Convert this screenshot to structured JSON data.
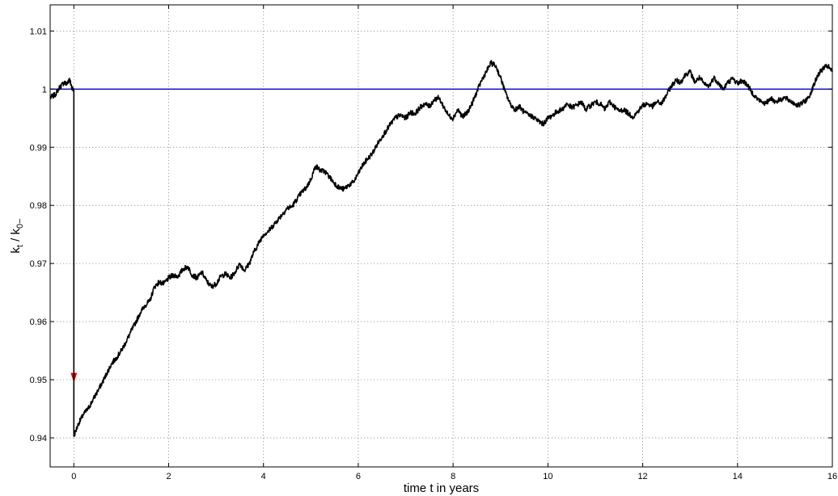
{
  "chart_data": {
    "type": "line",
    "title": "",
    "xlabel": "time t in years",
    "ylabel_main_1": "k",
    "ylabel_sub_1": "t",
    "ylabel_sep": " / k",
    "ylabel_sub_2": "0−",
    "xlim": [
      -0.5,
      16
    ],
    "ylim": [
      0.935,
      1.0145
    ],
    "xticks": [
      0,
      2,
      4,
      6,
      8,
      10,
      12,
      14,
      16
    ],
    "yticks": [
      0.94,
      0.95,
      0.96,
      0.97,
      0.98,
      0.99,
      1,
      1.01
    ],
    "grid": true,
    "colors": {
      "path": "#000000",
      "reference": "#0000cc",
      "arrow": "#ee0000"
    },
    "reference_line": {
      "y": 1.0
    },
    "arrow": {
      "x": 0.0,
      "y_from": 0.9997,
      "y_to": 0.9495
    },
    "series": [
      {
        "points": [
          [
            -0.5,
            0.9985
          ],
          [
            -0.4,
            0.999
          ],
          [
            -0.3,
            1.0003
          ],
          [
            -0.2,
            1.0012
          ],
          [
            -0.15,
            1.0008
          ],
          [
            -0.1,
            1.0018
          ],
          [
            -0.05,
            1.0005
          ],
          [
            0.0,
            0.9997
          ],
          [
            0.0,
            0.9403
          ],
          [
            0.1,
            0.9425
          ],
          [
            0.2,
            0.944
          ],
          [
            0.3,
            0.945
          ],
          [
            0.4,
            0.9465
          ],
          [
            0.5,
            0.948
          ],
          [
            0.6,
            0.9495
          ],
          [
            0.7,
            0.9512
          ],
          [
            0.8,
            0.9528
          ],
          [
            0.9,
            0.9538
          ],
          [
            1.0,
            0.955
          ],
          [
            1.1,
            0.9565
          ],
          [
            1.2,
            0.9582
          ],
          [
            1.3,
            0.9598
          ],
          [
            1.4,
            0.9615
          ],
          [
            1.5,
            0.9628
          ],
          [
            1.6,
            0.9635
          ],
          [
            1.7,
            0.966
          ],
          [
            1.8,
            0.9668
          ],
          [
            1.9,
            0.9665
          ],
          [
            2.0,
            0.9675
          ],
          [
            2.1,
            0.968
          ],
          [
            2.2,
            0.9678
          ],
          [
            2.3,
            0.969
          ],
          [
            2.4,
            0.9695
          ],
          [
            2.5,
            0.968
          ],
          [
            2.6,
            0.9675
          ],
          [
            2.7,
            0.9685
          ],
          [
            2.8,
            0.967
          ],
          [
            2.9,
            0.966
          ],
          [
            3.0,
            0.9665
          ],
          [
            3.1,
            0.9678
          ],
          [
            3.2,
            0.9682
          ],
          [
            3.3,
            0.9675
          ],
          [
            3.4,
            0.9685
          ],
          [
            3.5,
            0.97
          ],
          [
            3.6,
            0.9688
          ],
          [
            3.7,
            0.97
          ],
          [
            3.8,
            0.972
          ],
          [
            3.9,
            0.9735
          ],
          [
            4.0,
            0.975
          ],
          [
            4.1,
            0.9755
          ],
          [
            4.2,
            0.9765
          ],
          [
            4.3,
            0.9775
          ],
          [
            4.4,
            0.9785
          ],
          [
            4.5,
            0.9795
          ],
          [
            4.6,
            0.9798
          ],
          [
            4.7,
            0.981
          ],
          [
            4.8,
            0.9822
          ],
          [
            4.9,
            0.983
          ],
          [
            5.0,
            0.9845
          ],
          [
            5.1,
            0.9868
          ],
          [
            5.2,
            0.986
          ],
          [
            5.3,
            0.9858
          ],
          [
            5.4,
            0.9848
          ],
          [
            5.5,
            0.9838
          ],
          [
            5.6,
            0.983
          ],
          [
            5.7,
            0.9828
          ],
          [
            5.8,
            0.9835
          ],
          [
            5.9,
            0.984
          ],
          [
            6.0,
            0.9855
          ],
          [
            6.1,
            0.987
          ],
          [
            6.2,
            0.988
          ],
          [
            6.3,
            0.989
          ],
          [
            6.4,
            0.9905
          ],
          [
            6.5,
            0.9918
          ],
          [
            6.6,
            0.993
          ],
          [
            6.7,
            0.9942
          ],
          [
            6.8,
            0.9952
          ],
          [
            6.9,
            0.9955
          ],
          [
            7.0,
            0.995
          ],
          [
            7.1,
            0.996
          ],
          [
            7.2,
            0.9958
          ],
          [
            7.3,
            0.9968
          ],
          [
            7.4,
            0.9975
          ],
          [
            7.5,
            0.997
          ],
          [
            7.6,
            0.9982
          ],
          [
            7.7,
            0.9985
          ],
          [
            7.8,
            0.997
          ],
          [
            7.9,
            0.9955
          ],
          [
            8.0,
            0.995
          ],
          [
            8.1,
            0.9965
          ],
          [
            8.2,
            0.9952
          ],
          [
            8.3,
            0.996
          ],
          [
            8.4,
            0.9975
          ],
          [
            8.5,
            0.9995
          ],
          [
            8.6,
            1.0015
          ],
          [
            8.7,
            1.003
          ],
          [
            8.8,
            1.0045
          ],
          [
            8.9,
            1.004
          ],
          [
            9.0,
            1.002
          ],
          [
            9.1,
            0.9995
          ],
          [
            9.2,
            0.9975
          ],
          [
            9.3,
            0.9965
          ],
          [
            9.4,
            0.997
          ],
          [
            9.5,
            0.996
          ],
          [
            9.6,
            0.9955
          ],
          [
            9.7,
            0.9952
          ],
          [
            9.8,
            0.9945
          ],
          [
            9.9,
            0.994
          ],
          [
            10.0,
            0.995
          ],
          [
            10.1,
            0.9955
          ],
          [
            10.2,
            0.9962
          ],
          [
            10.3,
            0.9965
          ],
          [
            10.4,
            0.9975
          ],
          [
            10.5,
            0.9968
          ],
          [
            10.6,
            0.9972
          ],
          [
            10.7,
            0.9978
          ],
          [
            10.8,
            0.9965
          ],
          [
            10.9,
            0.9972
          ],
          [
            11.0,
            0.9978
          ],
          [
            11.1,
            0.9975
          ],
          [
            11.2,
            0.9965
          ],
          [
            11.3,
            0.9978
          ],
          [
            11.4,
            0.997
          ],
          [
            11.5,
            0.9962
          ],
          [
            11.6,
            0.9965
          ],
          [
            11.7,
            0.9958
          ],
          [
            11.8,
            0.9952
          ],
          [
            11.9,
            0.9962
          ],
          [
            12.0,
            0.9972
          ],
          [
            12.1,
            0.9975
          ],
          [
            12.2,
            0.997
          ],
          [
            12.3,
            0.9978
          ],
          [
            12.4,
            0.9975
          ],
          [
            12.5,
            0.999
          ],
          [
            12.6,
            1.0005
          ],
          [
            12.7,
            1.0015
          ],
          [
            12.8,
            1.0012
          ],
          [
            12.9,
            1.0025
          ],
          [
            13.0,
            1.003
          ],
          [
            13.1,
            1.0012
          ],
          [
            13.2,
            1.002
          ],
          [
            13.3,
            1.0008
          ],
          [
            13.4,
            1.0005
          ],
          [
            13.5,
            1.002
          ],
          [
            13.6,
            1.001
          ],
          [
            13.7,
            1.0
          ],
          [
            13.8,
            1.0012
          ],
          [
            13.9,
            1.0018
          ],
          [
            14.0,
            1.001
          ],
          [
            14.1,
            1.0015
          ],
          [
            14.2,
            1.0008
          ],
          [
            14.3,
            0.9995
          ],
          [
            14.4,
            0.9985
          ],
          [
            14.5,
            0.9978
          ],
          [
            14.6,
            0.9975
          ],
          [
            14.7,
            0.9985
          ],
          [
            14.8,
            0.9978
          ],
          [
            14.9,
            0.9982
          ],
          [
            15.0,
            0.9985
          ],
          [
            15.1,
            0.998
          ],
          [
            15.2,
            0.9975
          ],
          [
            15.3,
            0.9972
          ],
          [
            15.4,
            0.9978
          ],
          [
            15.5,
            0.9985
          ],
          [
            15.6,
            1.0005
          ],
          [
            15.7,
            1.0025
          ],
          [
            15.8,
            1.0035
          ],
          [
            15.9,
            1.004
          ],
          [
            16.0,
            1.003
          ]
        ]
      }
    ]
  }
}
